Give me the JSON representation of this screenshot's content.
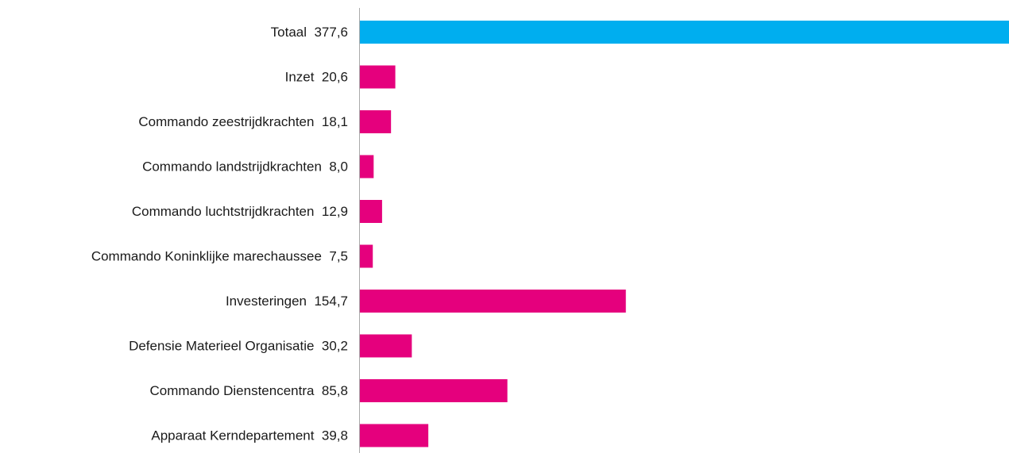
{
  "chart_data": {
    "type": "bar",
    "orientation": "horizontal",
    "categories": [
      "Totaal  377,6",
      "Inzet  20,6",
      "Commando zeestrijdkrachten  18,1",
      "Commando landstrijdkrachten  8,0",
      "Commando luchtstrijdkrachten  12,9",
      "Commando Koninklijke marechaussee  7,5",
      "Investeringen  154,7",
      "Defensie Materieel Organisatie  30,2",
      "Commando Dienstencentra  85,8",
      "Apparaat Kerndepartement  39,8"
    ],
    "values": [
      377.6,
      20.6,
      18.1,
      8.0,
      12.9,
      7.5,
      154.7,
      30.2,
      85.8,
      39.8
    ],
    "colors": [
      "#00aeef",
      "#e5007d",
      "#e5007d",
      "#e5007d",
      "#e5007d",
      "#e5007d",
      "#e5007d",
      "#e5007d",
      "#e5007d",
      "#e5007d"
    ],
    "xlim": [
      0,
      377.6
    ],
    "grid": false,
    "legend": "none",
    "axis_color": "#aaaaaa"
  }
}
